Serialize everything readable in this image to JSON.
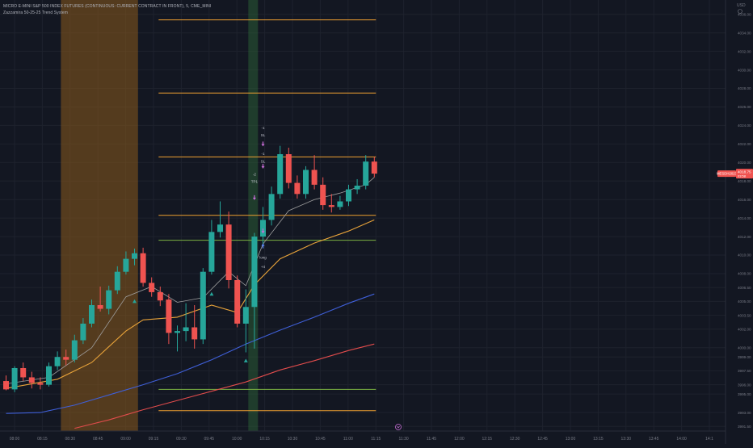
{
  "header": {
    "symbol_title": "MICRO E-MINI S&P 500 INDEX FUTURES (CONTINUOUS: CURRENT CONTRACT IN FRONT), 5, CME_MINI",
    "indicator_title": "Zazzamira 50-25-25 Trend System",
    "currency": "USD"
  },
  "price_badges": {
    "symbol": "MESDH2023",
    "price": "4018.75",
    "countdown": "03:58"
  },
  "colors": {
    "background": "#131722",
    "grid": "#1e222d",
    "up": "#26a69a",
    "down": "#ef5350",
    "session_band": "#8a5a1c",
    "signal_band": "#2e6b3a",
    "orange_level": "#f0a030",
    "green_level": "#7cb342",
    "ma_fast": "#9e9e9e",
    "ma_medium": "#e8a33a",
    "ma_slow": "#3f5fd8",
    "ma_slowest": "#e14c4c",
    "axis_text": "#787b86"
  },
  "chart_data": {
    "type": "candlestick",
    "y_ticks": [
      "4036.00",
      "4034.00",
      "4032.00",
      "4030.00",
      "4028.00",
      "4026.00",
      "4024.00",
      "4022.00",
      "4020.00",
      "4018.00",
      "4016.00",
      "4014.00",
      "4012.00",
      "4010.00",
      "4008.00",
      "4006.50",
      "4005.00",
      "4003.50",
      "4002.00",
      "4000.00",
      "3999.00",
      "3997.50",
      "3996.00",
      "3995.00",
      "3993.00",
      "3991.50"
    ],
    "y_tick_values": [
      4036,
      4034,
      4032,
      4030,
      4028,
      4026,
      4024,
      4022,
      4020,
      4018,
      4016,
      4014,
      4012,
      4010,
      4008,
      4006.5,
      4005,
      4003.5,
      4002,
      4000,
      3999,
      3997.5,
      3996,
      3995,
      3993,
      3991.5
    ],
    "x_ticks": [
      "08:00",
      "08:15",
      "08:30",
      "08:45",
      "09:00",
      "09:15",
      "09:30",
      "09:45",
      "10:00",
      "10:15",
      "10:30",
      "10:45",
      "11:00",
      "11:15",
      "11:30",
      "11:45",
      "12:00",
      "12:15",
      "12:30",
      "12:45",
      "13:00",
      "13:15",
      "13:30",
      "13:45",
      "14:00",
      "14:1"
    ],
    "candles": [
      [
        3996.4,
        3997.0,
        3995.4,
        3995.5
      ],
      [
        3995.5,
        3998.0,
        3995.2,
        3997.8
      ],
      [
        3997.8,
        3998.4,
        3996.4,
        3996.8
      ],
      [
        3996.8,
        3997.4,
        3995.6,
        3996.2
      ],
      [
        3996.2,
        3996.8,
        3995.5,
        3996.0
      ],
      [
        3996.0,
        3998.4,
        3995.8,
        3998.0
      ],
      [
        3998.0,
        3999.6,
        3997.6,
        3999.0
      ],
      [
        3999.0,
        3999.8,
        3998.1,
        3998.7
      ],
      [
        3998.7,
        4001.4,
        3998.4,
        4000.8
      ],
      [
        4000.8,
        4003.2,
        4000.4,
        4002.6
      ],
      [
        4002.6,
        4005.2,
        4002.2,
        4004.6
      ],
      [
        4004.6,
        4006.6,
        4003.9,
        4004.2
      ],
      [
        4004.2,
        4006.7,
        4003.6,
        4006.2
      ],
      [
        4006.2,
        4008.8,
        4005.8,
        4008.2
      ],
      [
        4008.2,
        4010.4,
        4007.9,
        4009.6
      ],
      [
        4009.6,
        4010.7,
        4008.9,
        4010.2
      ],
      [
        4010.2,
        4010.8,
        4006.6,
        4007.0
      ],
      [
        4007.0,
        4007.6,
        4005.5,
        4006.0
      ],
      [
        4006.0,
        4006.6,
        4004.5,
        4005.1
      ],
      [
        4005.2,
        4005.8,
        4000.4,
        4001.6
      ],
      [
        4001.6,
        4002.4,
        3999.6,
        4001.8
      ],
      [
        4001.8,
        4004.8,
        4000.7,
        4002.2
      ],
      [
        4002.2,
        4004.6,
        3999.9,
        4000.9
      ],
      [
        4000.9,
        4008.6,
        4000.4,
        4008.2
      ],
      [
        4008.2,
        4013.8,
        4007.9,
        4012.5
      ],
      [
        4012.5,
        4015.8,
        4011.9,
        4013.3
      ],
      [
        4013.3,
        4014.7,
        4006.4,
        4007.3
      ],
      [
        4007.3,
        4007.8,
        4002.2,
        4002.6
      ],
      [
        4002.6,
        4006.3,
        3999.5,
        4004.4
      ],
      [
        4004.4,
        4012.4,
        3999.9,
        4012.0
      ],
      [
        4012.0,
        4015.2,
        4011.1,
        4013.8
      ],
      [
        4013.8,
        4017.4,
        4013.2,
        4016.6
      ],
      [
        4016.6,
        4021.8,
        4016.1,
        4020.9
      ],
      [
        4020.9,
        4021.6,
        4017.2,
        4017.8
      ],
      [
        4017.8,
        4018.6,
        4016.1,
        4016.6
      ],
      [
        4016.6,
        4019.6,
        4016.1,
        4019.2
      ],
      [
        4019.2,
        4020.8,
        4017.1,
        4017.6
      ],
      [
        4017.6,
        4018.4,
        4014.9,
        4015.4
      ],
      [
        4015.4,
        4016.6,
        4014.6,
        4015.2
      ],
      [
        4015.2,
        4016.4,
        4014.9,
        4015.8
      ],
      [
        4015.8,
        4017.6,
        4015.3,
        4017.1
      ],
      [
        4017.1,
        4018.2,
        4016.6,
        4017.5
      ],
      [
        4017.5,
        4020.8,
        4017.1,
        4020.1
      ],
      [
        4020.1,
        4020.6,
        4018.4,
        4018.8
      ]
    ],
    "orange_levels": [
      4035.4,
      4027.5,
      4020.6,
      4014.3,
      3993.2
    ],
    "green_levels": [
      4011.6,
      3995.5
    ],
    "session_band_bars": [
      7,
      15
    ],
    "signal_band_bar": 28,
    "ma_series": [
      {
        "values": [
          [
            0,
            3996.1
          ],
          [
            5,
            3996.8
          ],
          [
            10,
            4000.0
          ],
          [
            14,
            4005.5
          ],
          [
            17,
            4006.6
          ],
          [
            20,
            4004.9
          ],
          [
            23,
            4005.4
          ],
          [
            26,
            4008.2
          ],
          [
            28,
            4006.7
          ],
          [
            30,
            4011.2
          ],
          [
            33,
            4014.8
          ],
          [
            36,
            4016.0
          ],
          [
            39,
            4016.7
          ],
          [
            42,
            4017.6
          ],
          [
            43,
            4018.4
          ]
        ]
      },
      {
        "values": [
          [
            0,
            3995.6
          ],
          [
            6,
            3996.6
          ],
          [
            10,
            3998.4
          ],
          [
            14,
            4001.8
          ],
          [
            16,
            4003.0
          ],
          [
            20,
            4003.3
          ],
          [
            24,
            4004.6
          ],
          [
            27,
            4003.8
          ],
          [
            29,
            4006.8
          ],
          [
            32,
            4009.6
          ],
          [
            36,
            4011.3
          ],
          [
            40,
            4012.6
          ],
          [
            43,
            4013.8
          ]
        ]
      },
      {
        "values": [
          [
            0,
            3992.9
          ],
          [
            4,
            3993.0
          ],
          [
            8,
            3993.8
          ],
          [
            12,
            3994.9
          ],
          [
            16,
            3996.0
          ],
          [
            20,
            3997.2
          ],
          [
            24,
            3998.7
          ],
          [
            28,
            4000.4
          ],
          [
            32,
            4001.9
          ],
          [
            36,
            4003.3
          ],
          [
            40,
            4004.8
          ],
          [
            43,
            4005.8
          ]
        ]
      },
      {
        "values": [
          [
            8,
            3991.3
          ],
          [
            12,
            3992.2
          ],
          [
            16,
            3993.3
          ],
          [
            20,
            3994.3
          ],
          [
            24,
            3995.3
          ],
          [
            28,
            3996.3
          ],
          [
            32,
            3997.6
          ],
          [
            36,
            3998.6
          ],
          [
            40,
            3999.7
          ],
          [
            43,
            4000.4
          ]
        ]
      }
    ],
    "signals": [
      {
        "bar": 15,
        "kind": "triangle-up",
        "y": 4005.0,
        "color": "#26a69a"
      },
      {
        "bar": 24,
        "kind": "triangle-up",
        "y": 4005.8,
        "color": "#26a69a"
      },
      {
        "bar": 28,
        "kind": "triangle-up",
        "y": 3998.6,
        "color": "#26a69a"
      },
      {
        "bar": 30,
        "kind": "arrow-up",
        "y": 4011.0,
        "color": "#5b8cff"
      },
      {
        "bar": 30,
        "kind": "arrow-down",
        "y": 4012.6,
        "color": "#c86dd7"
      },
      {
        "bar": 29,
        "kind": "arrow-down",
        "y": 4016.2,
        "color": "#c86dd7"
      },
      {
        "bar": 30,
        "kind": "arrow-down",
        "y": 4022.0,
        "color": "#c86dd7"
      },
      {
        "bar": 30,
        "kind": "arrow-down",
        "y": 4019.6,
        "color": "#c86dd7"
      }
    ],
    "signal_labels": [
      {
        "bar": 30,
        "y": 4009.6,
        "text": "long"
      },
      {
        "bar": 30,
        "y": 4008.6,
        "text": "+4"
      },
      {
        "bar": 29,
        "y": 4018.6,
        "text": "-2"
      },
      {
        "bar": 29,
        "y": 4017.8,
        "text": "TP1"
      },
      {
        "bar": 30,
        "y": 4023.6,
        "text": "-1"
      },
      {
        "bar": 30,
        "y": 4022.8,
        "text": "SL"
      },
      {
        "bar": 30,
        "y": 4020.8,
        "text": "-1"
      },
      {
        "bar": 30,
        "y": 4020.0,
        "text": "SL"
      }
    ],
    "ylim": [
      3991.0,
      4037.2
    ]
  }
}
